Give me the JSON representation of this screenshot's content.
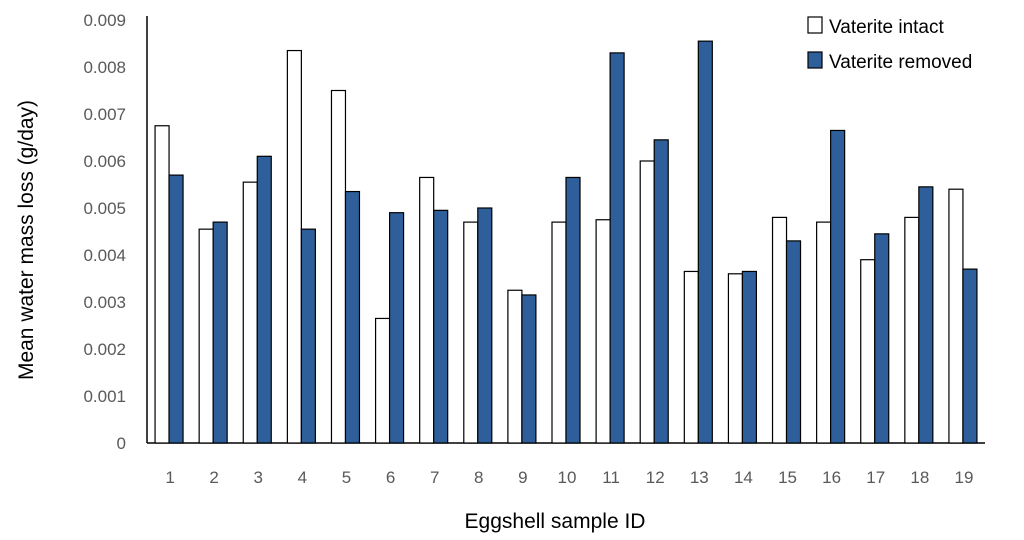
{
  "chart_data": {
    "type": "bar",
    "title": "",
    "xlabel": "Eggshell sample ID",
    "ylabel": "Mean water mass loss (g/day)",
    "categories": [
      "1",
      "2",
      "3",
      "4",
      "5",
      "6",
      "7",
      "8",
      "9",
      "10",
      "11",
      "12",
      "13",
      "14",
      "15",
      "16",
      "17",
      "18",
      "19"
    ],
    "series": [
      {
        "name": "Vaterite intact",
        "fill": "#ffffff",
        "stroke": "#000000",
        "values": [
          0.00675,
          0.00455,
          0.00555,
          0.00835,
          0.0075,
          0.00265,
          0.00565,
          0.0047,
          0.00325,
          0.0047,
          0.00475,
          0.006,
          0.00365,
          0.0036,
          0.0048,
          0.0047,
          0.0039,
          0.0048,
          0.0054
        ]
      },
      {
        "name": "Vaterite removed",
        "fill": "#2e5f9a",
        "stroke": "#000000",
        "values": [
          0.0057,
          0.0047,
          0.0061,
          0.00455,
          0.00535,
          0.0049,
          0.00495,
          0.005,
          0.00315,
          0.00565,
          0.0083,
          0.00645,
          0.00855,
          0.00365,
          0.0043,
          0.00665,
          0.00445,
          0.00545,
          0.0037
        ]
      }
    ],
    "ylim": [
      0,
      0.009
    ],
    "yticks": [
      "0",
      "0.001",
      "0.002",
      "0.003",
      "0.004",
      "0.005",
      "0.006",
      "0.007",
      "0.008",
      "0.009"
    ],
    "grid": false,
    "legend_position": "top-right"
  }
}
